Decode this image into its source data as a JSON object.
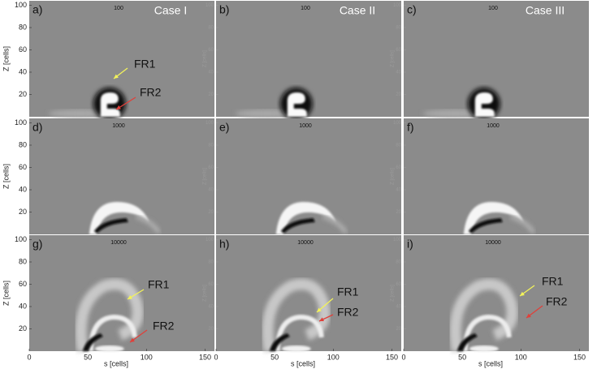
{
  "axes": {
    "xlabel": "s [cells]",
    "ylabel": "Z [cells]",
    "xlim": [
      0,
      158
    ],
    "ylim": [
      0,
      104
    ],
    "xticks": [
      0,
      50,
      100,
      150
    ],
    "yticks": [
      20,
      40,
      60,
      80,
      100
    ]
  },
  "columns": [
    "Case I",
    "Case II",
    "Case III"
  ],
  "panels": [
    {
      "label": "a)",
      "time": "100",
      "annotations": [
        "FR1",
        "FR2"
      ]
    },
    {
      "label": "b)",
      "time": "100"
    },
    {
      "label": "c)",
      "time": "100"
    },
    {
      "label": "d)",
      "time": "1000"
    },
    {
      "label": "e)",
      "time": "1000"
    },
    {
      "label": "f)",
      "time": "1000"
    },
    {
      "label": "g)",
      "time": "10000",
      "annotations": [
        "FR1",
        "FR2"
      ]
    },
    {
      "label": "h)",
      "time": "10000",
      "annotations": [
        "FR1",
        "FR2"
      ]
    },
    {
      "label": "i)",
      "time": "10000",
      "annotations": [
        "FR1",
        "FR2"
      ]
    }
  ]
}
